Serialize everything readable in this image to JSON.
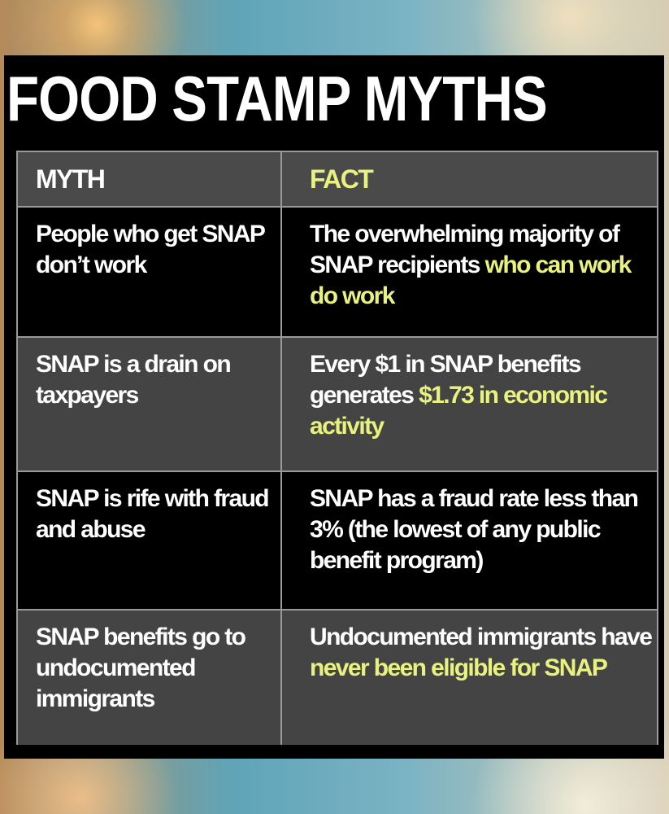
{
  "title": "FOOD STAMP MYTHS",
  "headers": {
    "myth": "MYTH",
    "fact": "FACT"
  },
  "colors": {
    "highlight": "#e9f27e",
    "text": "#ffffff",
    "panel": "#000000",
    "alt_row": "#444444"
  },
  "rows": [
    {
      "myth": "People who get SNAP don’t work",
      "fact": [
        {
          "text": "The overwhelming majority of SNAP recipients ",
          "highlight": false
        },
        {
          "text": "who can work do work",
          "highlight": true
        }
      ]
    },
    {
      "myth": "SNAP is a drain on taxpayers",
      "fact": [
        {
          "text": "Every $1 in SNAP benefits generates ",
          "highlight": false
        },
        {
          "text": "$1.73 in economic activity",
          "highlight": true
        }
      ]
    },
    {
      "myth": "SNAP is rife with fraud and abuse",
      "fact": [
        {
          "text": "SNAP has a fraud rate less than 3% (the lowest of any public benefit program)",
          "highlight": false
        }
      ]
    },
    {
      "myth": "SNAP benefits go to undocumented immigrants",
      "fact": [
        {
          "text": "Undocumented immigrants have ",
          "highlight": false
        },
        {
          "text": "never been eligible for SNAP",
          "highlight": true
        }
      ]
    }
  ]
}
